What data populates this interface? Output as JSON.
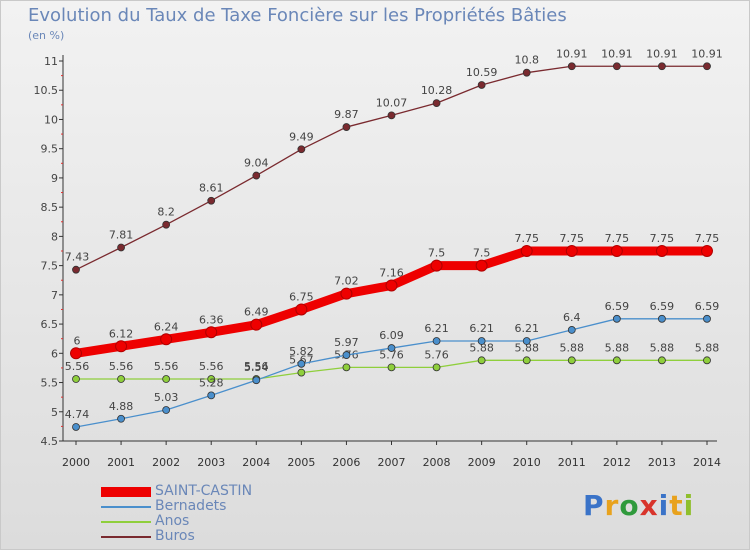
{
  "title": "Evolution du Taux de Taxe Foncière sur les Propriétés Bâties",
  "unit_label": "(en %)",
  "logo": {
    "text": "Proxiti",
    "letter_colors": [
      "#3a73c8",
      "#e8a21d",
      "#2f9a3c",
      "#d8342b",
      "#3a73c8",
      "#e8a21d",
      "#8fbf2c"
    ]
  },
  "chart_data": {
    "type": "line",
    "title": "Evolution du Taux de Taxe Foncière sur les Propriétés Bâties",
    "ylabel": "(en %)",
    "xlabel": "",
    "x": [
      "2000",
      "2001",
      "2002",
      "2003",
      "2004",
      "2005",
      "2006",
      "2007",
      "2008",
      "2009",
      "2010",
      "2011",
      "2012",
      "2013",
      "2014"
    ],
    "ylim": [
      4.5,
      11
    ],
    "y_ticks": [
      "4.5",
      "5",
      "5.5",
      "6",
      "6.5",
      "7",
      "7.5",
      "8",
      "8.5",
      "9",
      "9.5",
      "10",
      "10.5",
      "11"
    ],
    "grid": false,
    "legend_position": "bottom-left",
    "series": [
      {
        "name": "Buros",
        "color": "#7a2a2f",
        "highlight": false,
        "values": [
          7.43,
          7.81,
          8.2,
          8.61,
          9.04,
          9.49,
          9.87,
          10.07,
          10.28,
          10.59,
          10.8,
          10.91,
          10.91,
          10.91,
          10.91
        ],
        "labels": [
          "7.43",
          "7.81",
          "8.2",
          "8.61",
          "9.04",
          "9.49",
          "9.87",
          "10.07",
          "10.28",
          "10.59",
          "10.8",
          "10.91",
          "10.91",
          "10.91",
          "10.91"
        ]
      },
      {
        "name": "Anos",
        "color": "#8fcf3c",
        "highlight": false,
        "values": [
          5.56,
          5.56,
          5.56,
          5.56,
          5.56,
          5.67,
          5.76,
          5.76,
          5.76,
          5.88,
          5.88,
          5.88,
          5.88,
          5.88,
          5.88
        ],
        "labels": [
          "5.56",
          "5.56",
          "5.56",
          "5.56",
          "5.56",
          "5.67",
          "5.76",
          "5.76",
          "5.76",
          "5.88",
          "5.88",
          "5.88",
          "5.88",
          "5.88",
          "5.88"
        ]
      },
      {
        "name": "Bernadets",
        "color": "#4a8fcc",
        "highlight": false,
        "values": [
          4.74,
          4.88,
          5.03,
          5.28,
          5.54,
          5.82,
          5.97,
          6.09,
          6.21,
          6.21,
          6.21,
          6.4,
          6.59,
          6.59,
          6.59
        ],
        "labels": [
          "4.74",
          "4.88",
          "5.03",
          "5.28",
          "5.54",
          "5.82",
          "5.97",
          "6.09",
          "6.21",
          "6.21",
          "6.21",
          "6.4",
          "6.59",
          "6.59",
          "6.59"
        ]
      },
      {
        "name": "SAINT-CASTIN",
        "color": "#ee0000",
        "highlight": true,
        "values": [
          6,
          6.12,
          6.24,
          6.36,
          6.49,
          6.75,
          7.02,
          7.16,
          7.5,
          7.5,
          7.75,
          7.75,
          7.75,
          7.75,
          7.75
        ],
        "labels": [
          "6",
          "6.12",
          "6.24",
          "6.36",
          "6.49",
          "6.75",
          "7.02",
          "7.16",
          "7.5",
          "7.5",
          "7.75",
          "7.75",
          "7.75",
          "7.75",
          "7.75"
        ]
      }
    ],
    "legend": [
      "SAINT-CASTIN",
      "Bernadets",
      "Anos",
      "Buros"
    ]
  }
}
